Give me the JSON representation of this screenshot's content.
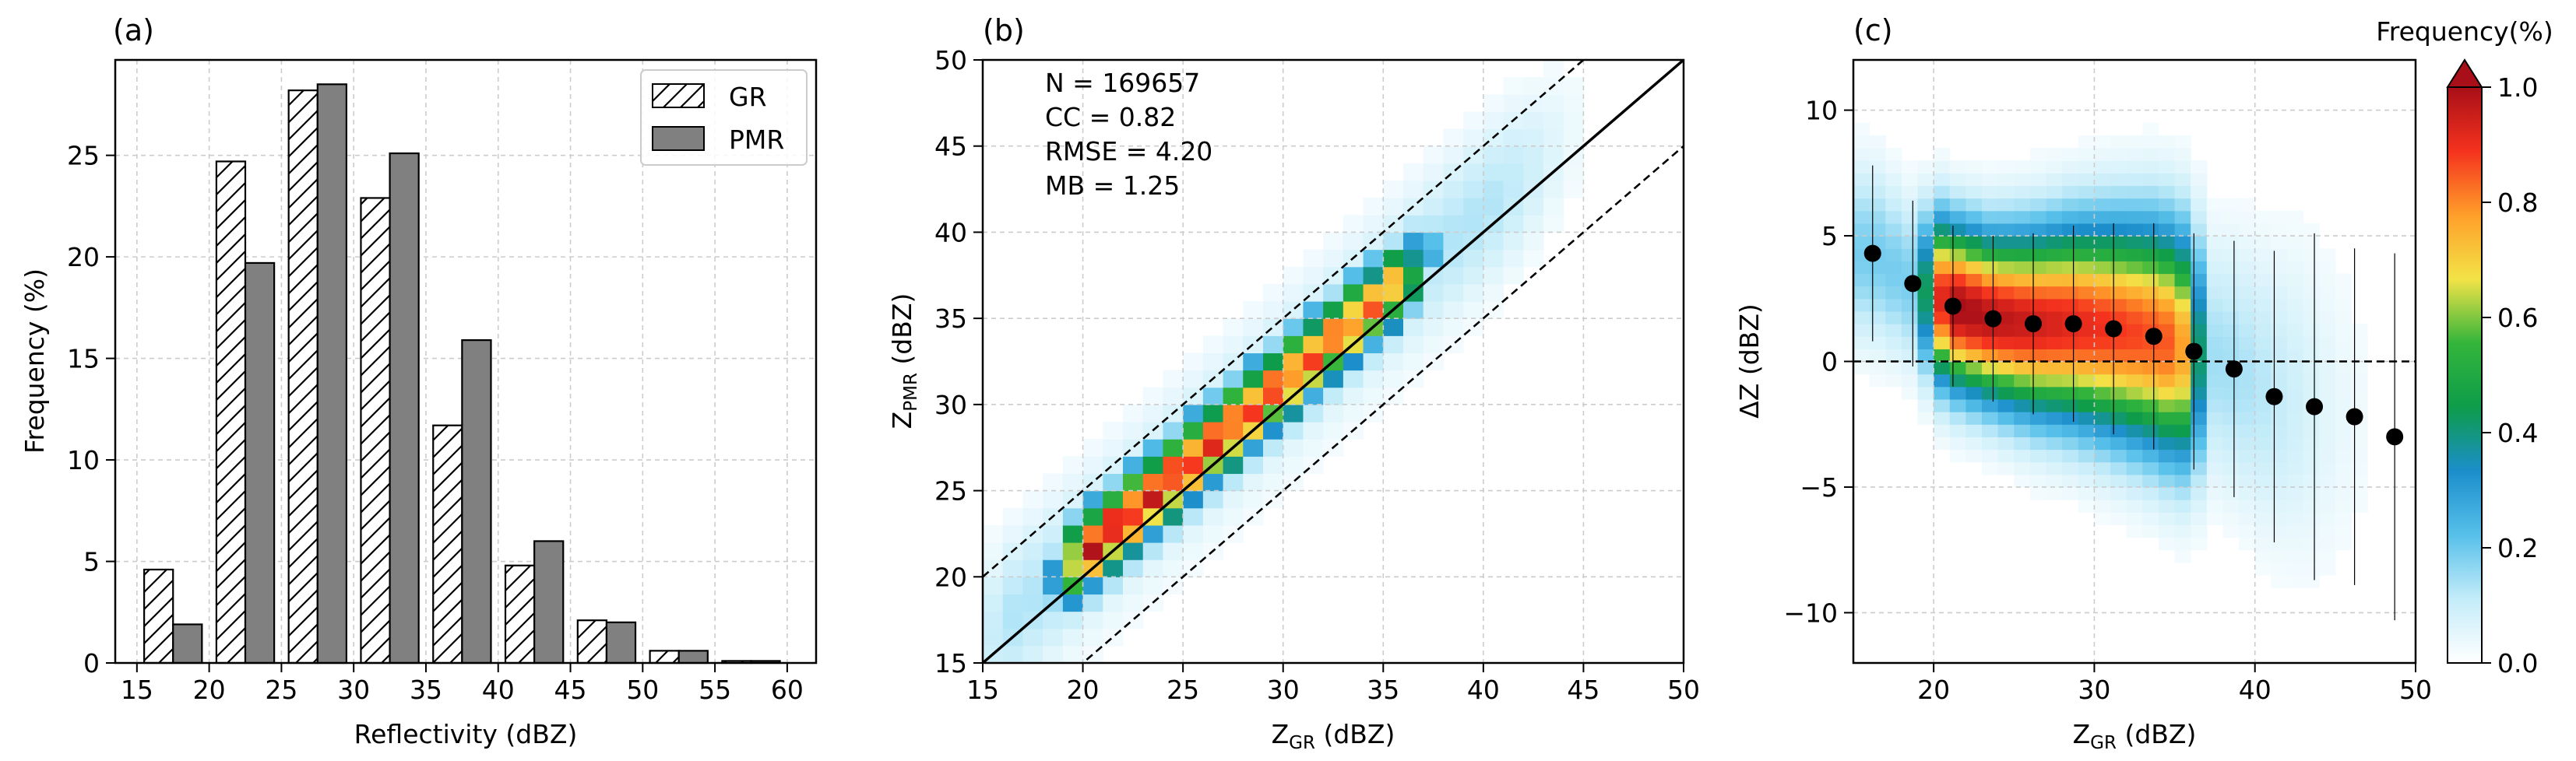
{
  "chart_data": [
    {
      "panel_label": "(a)",
      "type": "bar",
      "xlabel": "Reflectivity (dBZ)",
      "ylabel": "Frequency (%)",
      "xlim": [
        13.5,
        62
      ],
      "ylim": [
        0,
        29.7
      ],
      "x_ticks": [
        15,
        20,
        25,
        30,
        35,
        40,
        45,
        50,
        55,
        60
      ],
      "y_ticks": [
        0,
        5,
        10,
        15,
        20,
        25
      ],
      "bin_centers": [
        17.5,
        22.5,
        27.5,
        32.5,
        37.5,
        42.5,
        47.5,
        52.5,
        57.5
      ],
      "series": [
        {
          "name": "GR",
          "style": "hatched",
          "values": [
            4.6,
            24.7,
            28.2,
            22.9,
            11.7,
            4.8,
            2.1,
            0.6,
            0.1
          ]
        },
        {
          "name": "PMR",
          "style": "gray",
          "values": [
            1.9,
            19.7,
            28.5,
            25.1,
            15.9,
            6.0,
            2.0,
            0.6,
            0.1
          ]
        }
      ],
      "legend": {
        "position": "top-right",
        "entries": [
          "GR",
          "PMR"
        ]
      },
      "grid": true
    },
    {
      "panel_label": "(b)",
      "type": "heatmap",
      "xlabel_main": "Z",
      "xlabel_sub": "GR",
      "xlabel_unit": " (dBZ)",
      "ylabel_main": "Z",
      "ylabel_sub": "PMR",
      "ylabel_unit": " (dBZ)",
      "xlim": [
        15,
        50
      ],
      "ylim": [
        15,
        50
      ],
      "x_ticks": [
        15,
        20,
        25,
        30,
        35,
        40,
        45,
        50
      ],
      "y_ticks": [
        15,
        20,
        25,
        30,
        35,
        40,
        45,
        50
      ],
      "bin_width_dBZ": 1,
      "density_model": "normalized joint frequency peaking along the 1:1 line for Z_GR 20-35 dBZ, offset +1.25 dBZ",
      "reference_lines": [
        {
          "name": "1:1",
          "style": "solid",
          "offset": 0
        },
        {
          "name": "+5 dB",
          "style": "dashed",
          "offset": 5
        },
        {
          "name": "-5 dB",
          "style": "dashed",
          "offset": -5
        }
      ],
      "stats": [
        "N = 169657",
        "CC = 0.82",
        "RMSE = 4.20",
        "MB = 1.25"
      ],
      "grid": true
    },
    {
      "panel_label": "(c)",
      "type": "heatmap",
      "xlabel_main": "Z",
      "xlabel_sub": "GR",
      "xlabel_unit": " (dBZ)",
      "ylabel": "ΔZ (dBZ)",
      "xlim": [
        15,
        50
      ],
      "ylim": [
        -12,
        12
      ],
      "x_ticks": [
        20,
        30,
        40,
        50
      ],
      "y_ticks": [
        -10,
        -5,
        0,
        5,
        10
      ],
      "zero_line": "dashed",
      "mean_points": {
        "x": [
          16.2,
          18.7,
          21.2,
          23.7,
          26.2,
          28.7,
          31.2,
          33.7,
          36.2,
          38.7,
          41.2,
          43.7,
          46.2,
          48.7
        ],
        "mean": [
          4.3,
          3.1,
          2.2,
          1.7,
          1.5,
          1.5,
          1.3,
          1.0,
          0.4,
          -0.3,
          -1.4,
          -1.8,
          -2.2,
          -3.0
        ],
        "std": [
          3.5,
          3.3,
          3.2,
          3.3,
          3.6,
          3.9,
          4.2,
          4.5,
          4.7,
          5.1,
          5.8,
          6.9,
          6.7,
          7.3
        ]
      },
      "grid": true
    }
  ],
  "colorbar": {
    "title": "Frequency(%)",
    "range": [
      0.0,
      1.0
    ],
    "ticks": [
      0.0,
      0.2,
      0.4,
      0.6,
      0.8,
      1.0
    ],
    "tick_labels": [
      "0.0",
      "0.2",
      "0.4",
      "0.6",
      "0.8",
      "1.0"
    ],
    "extend": "max",
    "colors": [
      "#ffffff",
      "#c4ecf9",
      "#57c0ea",
      "#1b8ecb",
      "#0e9c4a",
      "#33b53b",
      "#f2e347",
      "#ff9f2a",
      "#f5321e",
      "#a80f18"
    ]
  }
}
